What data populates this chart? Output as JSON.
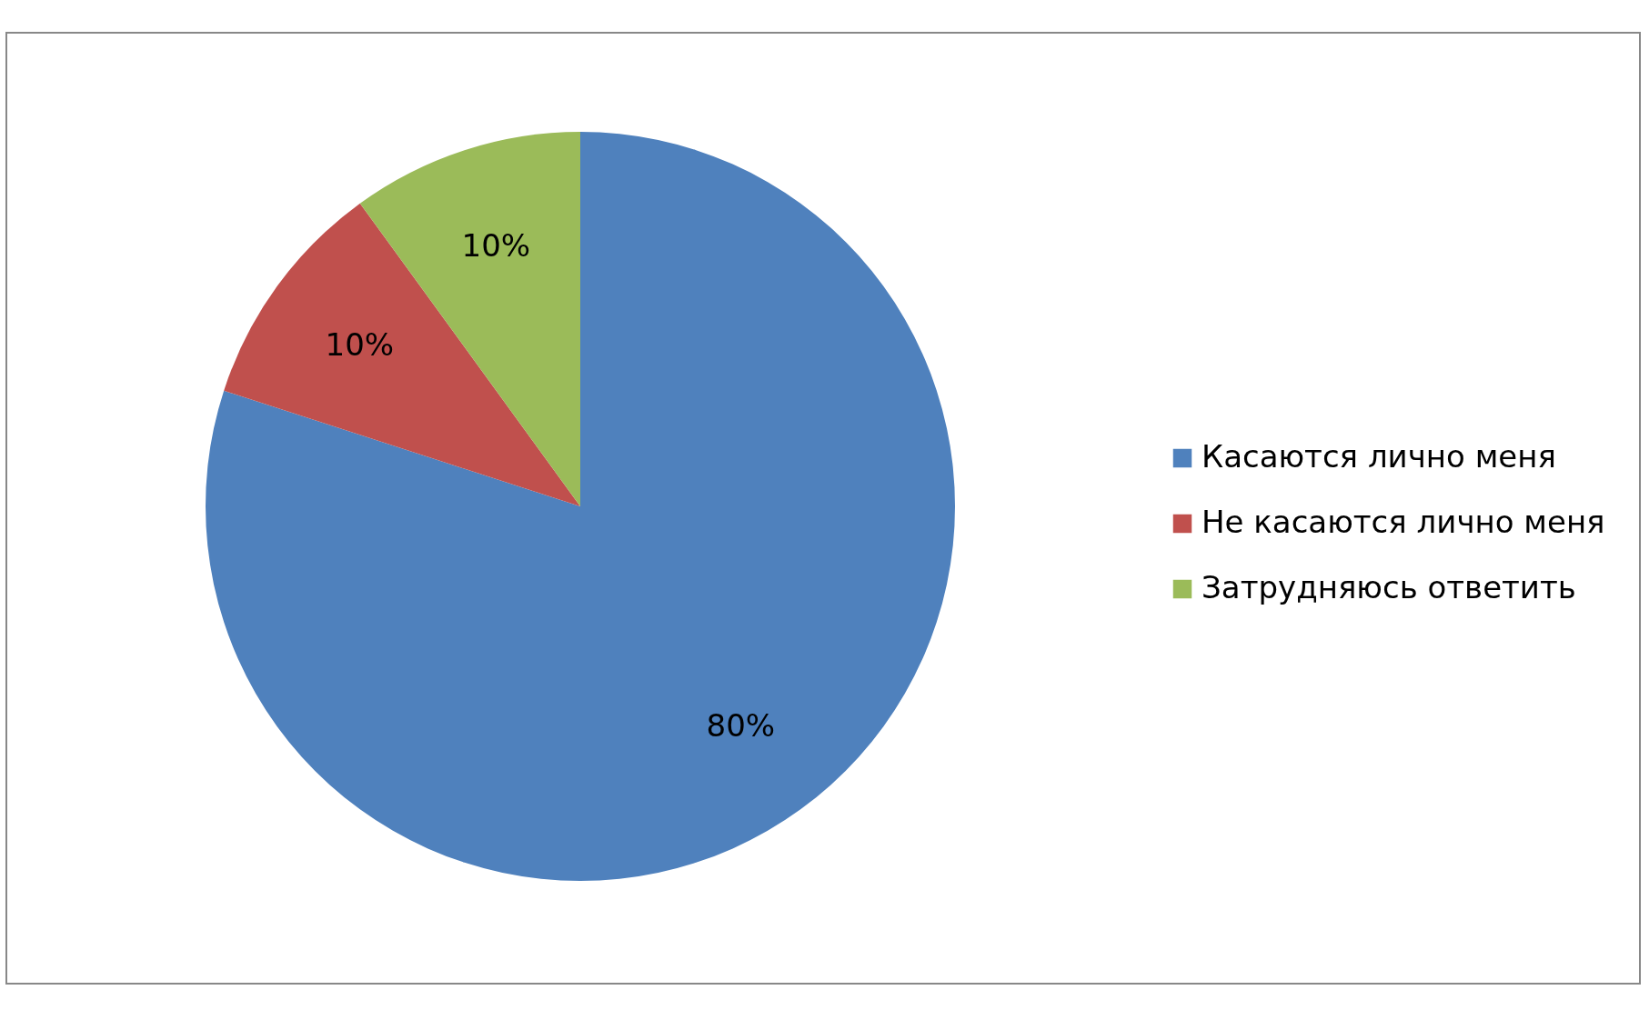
{
  "chart_data": {
    "type": "pie",
    "categories": [
      "Касаются лично меня",
      "Не касаются лично меня",
      "Затрудняюсь ответить"
    ],
    "values": [
      80,
      10,
      10
    ],
    "colors": [
      "#4f81bd",
      "#c0504d",
      "#9bbb59"
    ],
    "value_labels": [
      "80%",
      "10%",
      "10%"
    ],
    "legend": "right"
  }
}
